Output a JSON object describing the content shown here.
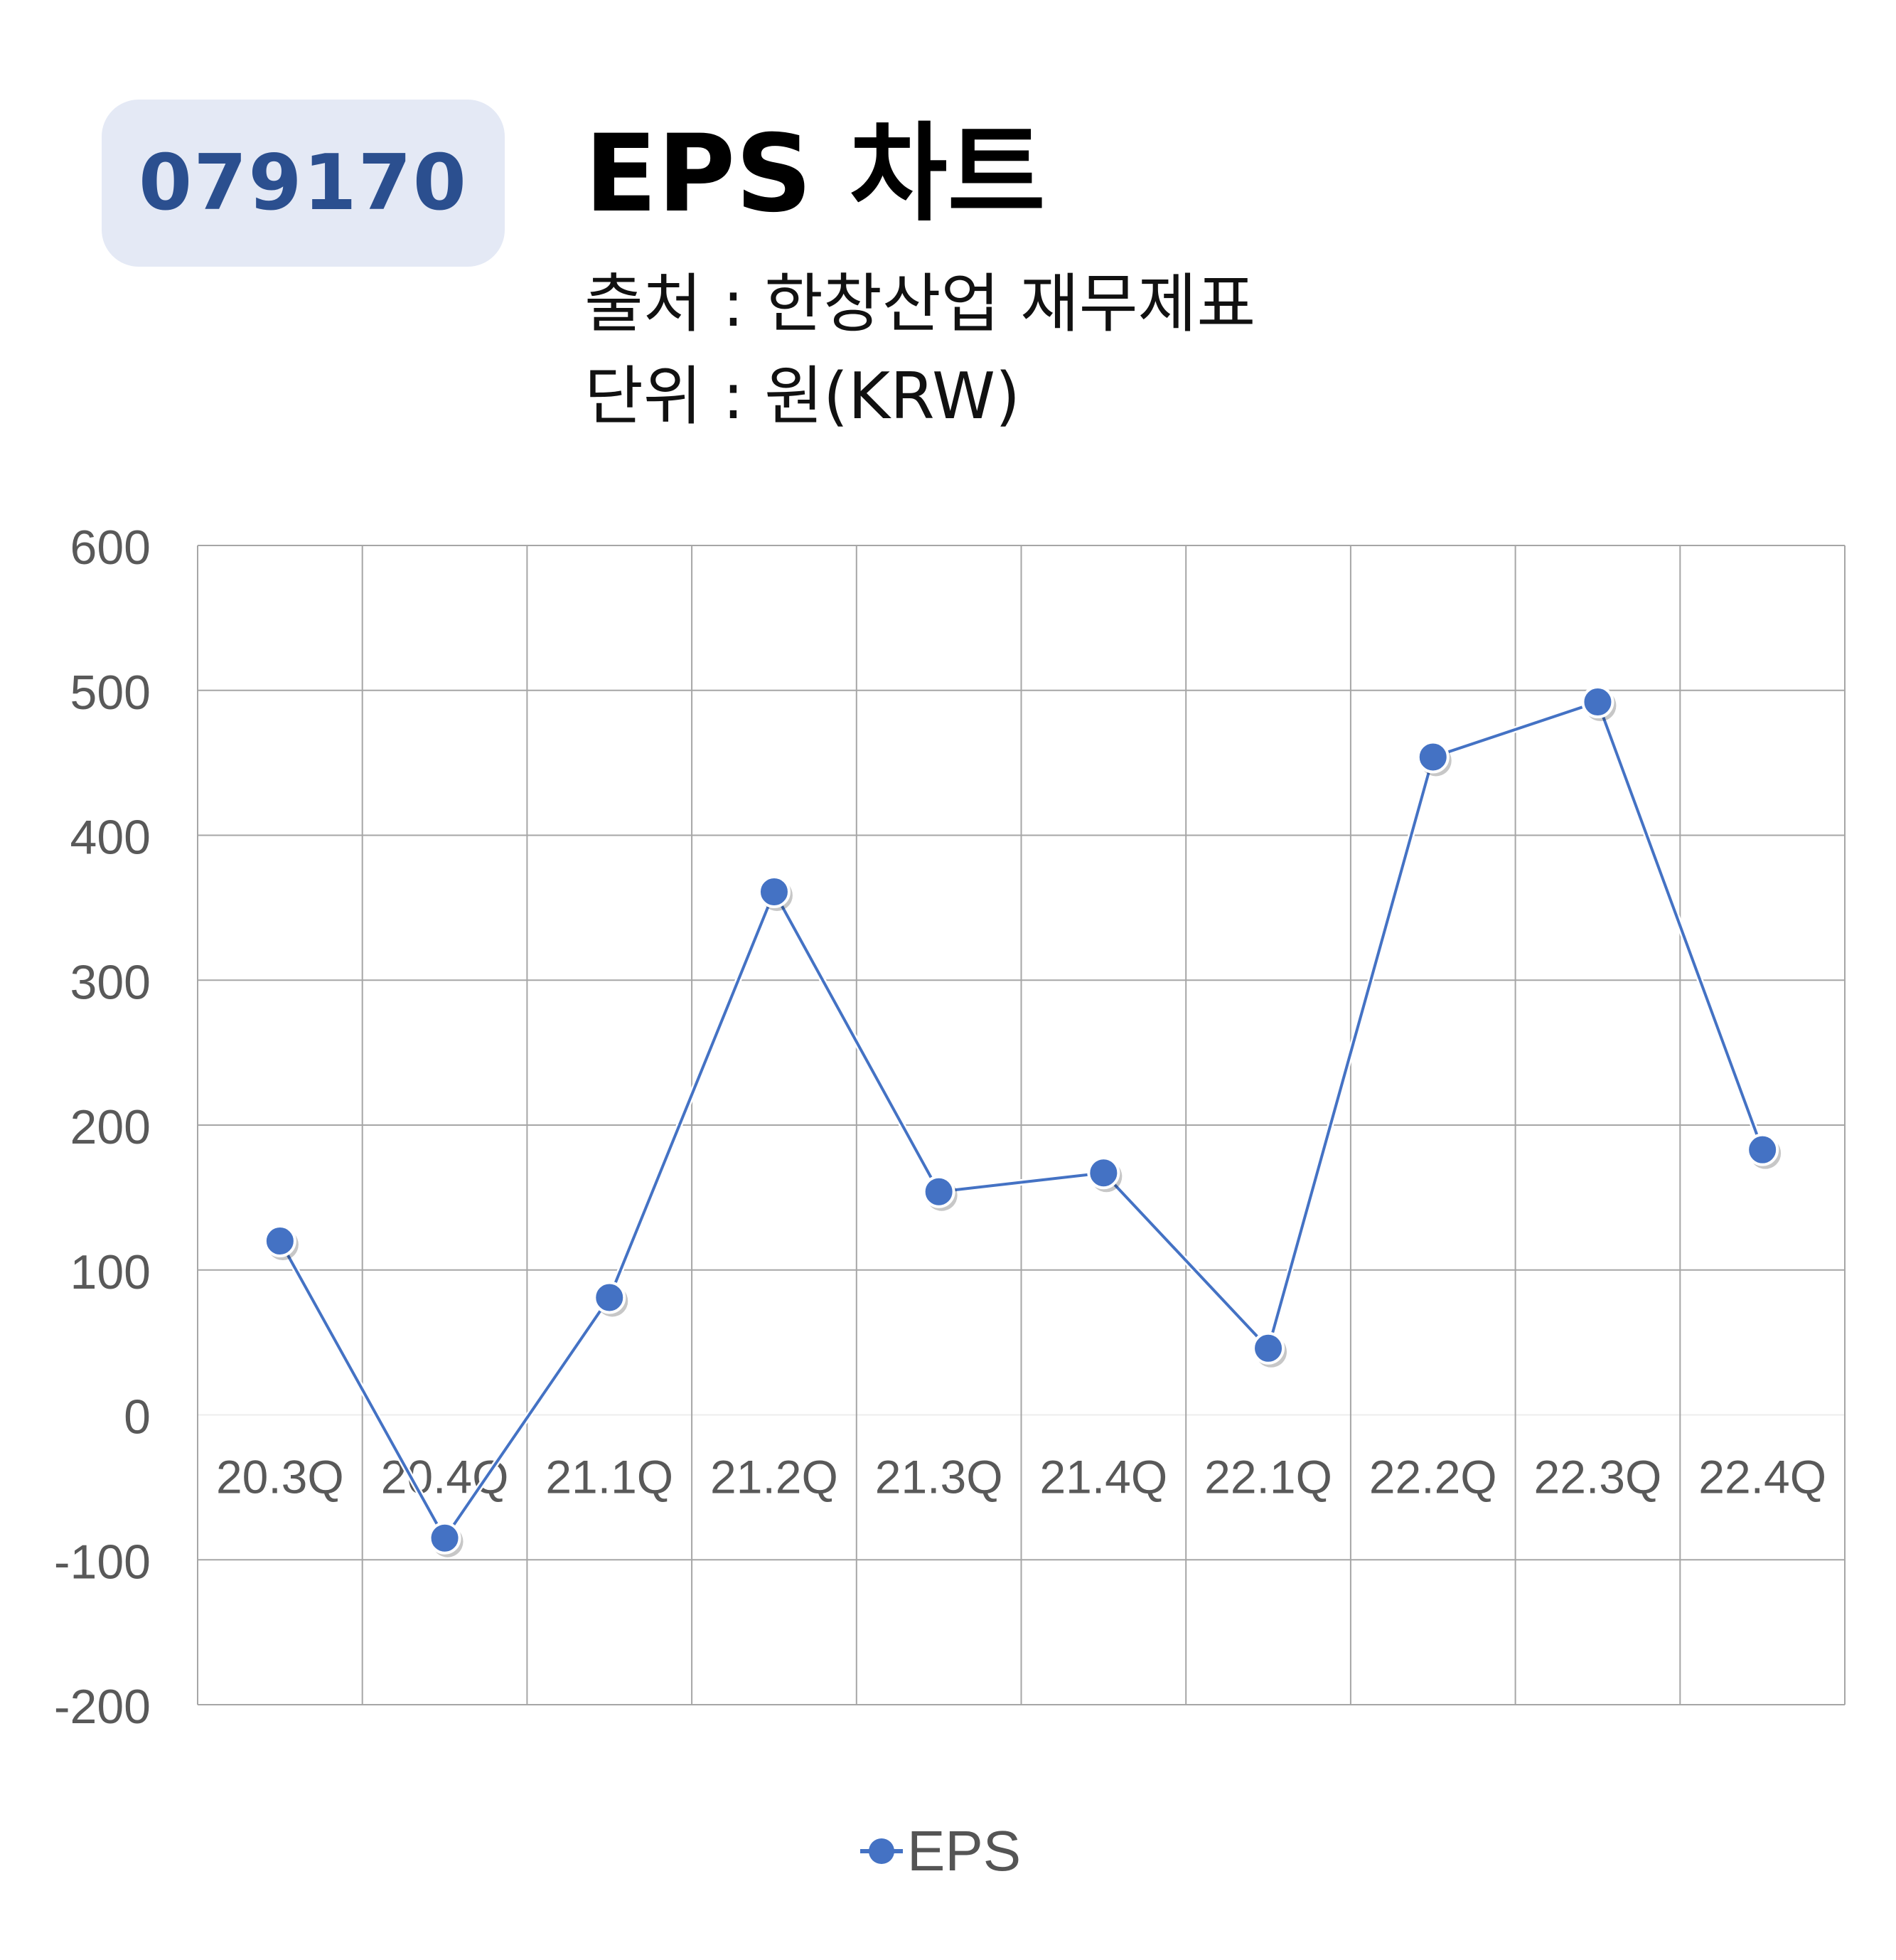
{
  "header": {
    "code": "079170",
    "title": "EPS 차트",
    "source": "출처 : 한창산업 재무제표",
    "unit": "단위 : 원(KRW)"
  },
  "chart_data": {
    "type": "line",
    "categories": [
      "20.3Q",
      "20.4Q",
      "21.1Q",
      "21.2Q",
      "21.3Q",
      "21.4Q",
      "22.1Q",
      "22.2Q",
      "22.3Q",
      "22.4Q"
    ],
    "series": [
      {
        "name": "EPS",
        "values": [
          120,
          -85,
          81,
          361,
          154,
          167,
          46,
          454,
          492,
          183
        ]
      }
    ],
    "ylim": [
      -200,
      600
    ],
    "yticks": [
      600,
      500,
      400,
      300,
      200,
      100,
      0,
      -100,
      -200
    ],
    "grid": true,
    "legend": "bottom",
    "colors": {
      "series": "#4472c4",
      "grid": "#a6a6a6",
      "tick_text": "#595959"
    }
  }
}
